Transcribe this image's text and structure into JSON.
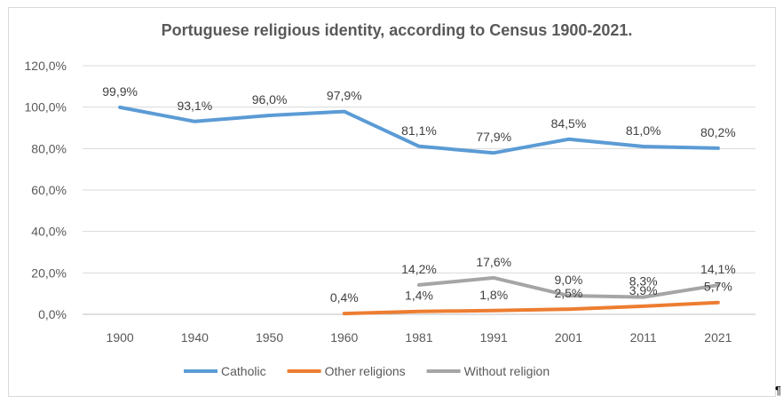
{
  "chart_data": {
    "type": "line",
    "title": "Portuguese religious identity, according to Census 1900-2021.",
    "categories": [
      "1900",
      "1940",
      "1950",
      "1960",
      "1981",
      "1991",
      "2001",
      "2011",
      "2021"
    ],
    "yticks": [
      "0,0%",
      "20,0%",
      "40,0%",
      "60,0%",
      "80,0%",
      "100,0%",
      "120,0%"
    ],
    "ylim": [
      0,
      120
    ],
    "grid": true,
    "legend_position": "bottom",
    "series": [
      {
        "name": "Catholic",
        "color": "#5b9bd5",
        "values": [
          99.9,
          93.1,
          96.0,
          97.9,
          81.1,
          77.9,
          84.5,
          81.0,
          80.2
        ],
        "labels": [
          "99,9%",
          "93,1%",
          "96,0%",
          "97,9%",
          "81,1%",
          "77,9%",
          "84,5%",
          "81,0%",
          "80,2%"
        ]
      },
      {
        "name": "Other religions",
        "color": "#ed7d31",
        "values": [
          null,
          null,
          null,
          0.4,
          1.4,
          1.8,
          2.5,
          3.9,
          5.7
        ],
        "labels": [
          "",
          "",
          "",
          "0,4%",
          "1,4%",
          "1,8%",
          "2,5%",
          "3,9%",
          "5,7%"
        ]
      },
      {
        "name": "Without religion",
        "color": "#a5a5a5",
        "values": [
          null,
          null,
          null,
          null,
          14.2,
          17.6,
          9.0,
          8.3,
          14.1
        ],
        "labels": [
          "",
          "",
          "",
          "",
          "14,2%",
          "17,6%",
          "9,0%",
          "8,3%",
          "14,1%"
        ]
      }
    ]
  }
}
